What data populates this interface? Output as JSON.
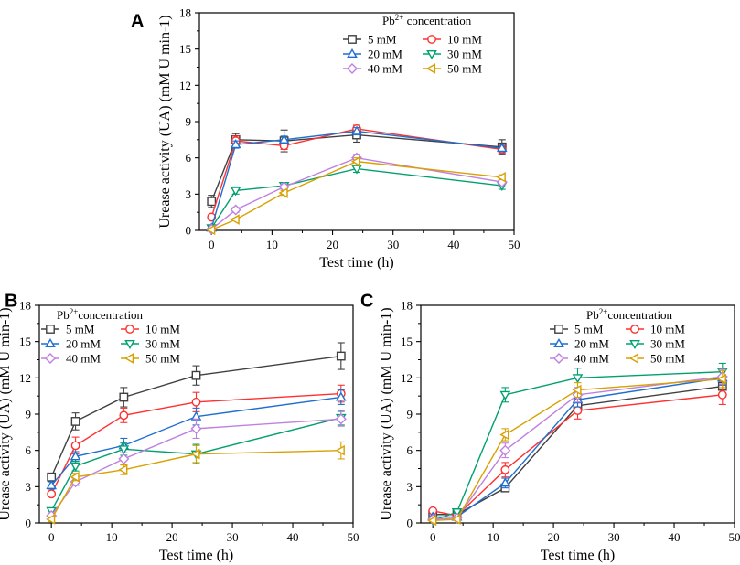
{
  "chart_data": [
    {
      "panel": "A",
      "type": "line",
      "xlabel": "Test time (h)",
      "ylabel": "Urease activity (UA) (mM U min-1)",
      "xlim": [
        -2,
        50
      ],
      "ylim": [
        0,
        18
      ],
      "xticks": [
        0,
        10,
        20,
        30,
        40,
        50
      ],
      "yticks": [
        0,
        3,
        6,
        9,
        12,
        15,
        18
      ],
      "legend_title": "Pb2+ concentration",
      "legend_title_base": "Pb",
      "legend_title_sup": "2+",
      "legend_title_rest": " concentration",
      "x": [
        0,
        4,
        12,
        24,
        48
      ],
      "series": [
        {
          "name": "5 mM",
          "color": "#404040",
          "marker": "square",
          "values": [
            2.4,
            7.5,
            7.4,
            7.9,
            6.9
          ],
          "errors": [
            0.5,
            0.5,
            0.9,
            0.6,
            0.6
          ]
        },
        {
          "name": "10 mM",
          "color": "#ff3030",
          "marker": "circle",
          "values": [
            1.1,
            7.4,
            7.0,
            8.4,
            6.7
          ],
          "errors": [
            0.2,
            0.4,
            0.3,
            0.3,
            0.3
          ]
        },
        {
          "name": "20 mM",
          "color": "#1f6fd0",
          "marker": "triangle-up",
          "values": [
            0.2,
            7.1,
            7.5,
            8.2,
            6.8
          ],
          "errors": [
            0.1,
            0.3,
            0.3,
            0.3,
            0.3
          ]
        },
        {
          "name": "30 mM",
          "color": "#00a070",
          "marker": "triangle-down",
          "values": [
            0.2,
            3.3,
            3.7,
            5.1,
            3.7
          ],
          "errors": [
            0.1,
            0.3,
            0.2,
            0.3,
            0.3
          ]
        },
        {
          "name": "40 mM",
          "color": "#c080e0",
          "marker": "diamond",
          "values": [
            0.1,
            1.7,
            3.6,
            6.0,
            4.0
          ],
          "errors": [
            0.1,
            0.2,
            0.2,
            0.3,
            0.2
          ]
        },
        {
          "name": "50 mM",
          "color": "#d8a000",
          "marker": "triangle-left",
          "values": [
            0.05,
            0.9,
            3.1,
            5.7,
            4.4
          ],
          "errors": [
            0.05,
            0.1,
            0.2,
            0.3,
            0.2
          ]
        }
      ]
    },
    {
      "panel": "B",
      "type": "line",
      "xlabel": "Test time (h)",
      "ylabel": "Urease activity (UA) (mM U min-1)",
      "xlim": [
        -2,
        50
      ],
      "ylim": [
        0,
        18
      ],
      "xticks": [
        0,
        10,
        20,
        30,
        40,
        50
      ],
      "yticks": [
        0,
        3,
        6,
        9,
        12,
        15,
        18
      ],
      "legend_title": "Pb2+concentration",
      "legend_title_base": "Pb",
      "legend_title_sup": "2+",
      "legend_title_rest": "concentration",
      "x": [
        0,
        4,
        12,
        24,
        48
      ],
      "series": [
        {
          "name": "5 mM",
          "color": "#404040",
          "marker": "square",
          "values": [
            3.8,
            8.4,
            10.4,
            12.2,
            13.8
          ],
          "errors": [
            0.3,
            0.7,
            0.8,
            0.8,
            1.1
          ]
        },
        {
          "name": "10 mM",
          "color": "#ff3030",
          "marker": "circle",
          "values": [
            2.4,
            6.4,
            8.9,
            10.0,
            10.7
          ],
          "errors": [
            0.2,
            0.7,
            0.6,
            0.8,
            0.7
          ]
        },
        {
          "name": "20 mM",
          "color": "#1f6fd0",
          "marker": "triangle-up",
          "values": [
            3.1,
            5.5,
            6.4,
            8.8,
            10.4
          ],
          "errors": [
            0.3,
            0.4,
            0.6,
            0.7,
            0.6
          ]
        },
        {
          "name": "30 mM",
          "color": "#00a070",
          "marker": "triangle-down",
          "values": [
            1.0,
            4.7,
            6.1,
            5.7,
            8.7
          ],
          "errors": [
            0.2,
            0.4,
            0.5,
            0.8,
            0.6
          ]
        },
        {
          "name": "40 mM",
          "color": "#c080e0",
          "marker": "diamond",
          "values": [
            0.6,
            3.4,
            5.3,
            7.8,
            8.6
          ],
          "errors": [
            0.2,
            0.3,
            0.5,
            0.8,
            0.6
          ]
        },
        {
          "name": "50 mM",
          "color": "#d8a000",
          "marker": "triangle-left",
          "values": [
            0.3,
            3.8,
            4.4,
            5.7,
            6.0
          ],
          "errors": [
            0.2,
            0.3,
            0.4,
            0.7,
            0.7
          ]
        }
      ]
    },
    {
      "panel": "C",
      "type": "line",
      "xlabel": "Test time (h)",
      "ylabel": "Urease activity (UA) (mM U min-1)",
      "xlim": [
        -2,
        50
      ],
      "ylim": [
        0,
        18
      ],
      "xticks": [
        0,
        10,
        20,
        30,
        40,
        50
      ],
      "yticks": [
        0,
        3,
        6,
        9,
        12,
        15,
        18
      ],
      "legend_title": "Pb2+concentration",
      "legend_title_base": "Pb",
      "legend_title_sup": "2+",
      "legend_title_rest": "concentration",
      "x": [
        0,
        4,
        12,
        24,
        48
      ],
      "series": [
        {
          "name": "5 mM",
          "color": "#404040",
          "marker": "square",
          "values": [
            0.7,
            0.7,
            2.9,
            9.7,
            11.3
          ],
          "errors": [
            0.1,
            0.1,
            0.3,
            0.6,
            0.6
          ]
        },
        {
          "name": "10 mM",
          "color": "#ff3030",
          "marker": "circle",
          "values": [
            1.0,
            0.6,
            4.4,
            9.3,
            10.6
          ],
          "errors": [
            0.1,
            0.1,
            0.6,
            0.7,
            0.8
          ]
        },
        {
          "name": "20 mM",
          "color": "#1f6fd0",
          "marker": "triangle-up",
          "values": [
            0.5,
            0.5,
            3.3,
            10.2,
            12.0
          ],
          "errors": [
            0.1,
            0.1,
            0.4,
            0.6,
            0.6
          ]
        },
        {
          "name": "30 mM",
          "color": "#00a070",
          "marker": "triangle-down",
          "values": [
            0.2,
            0.9,
            10.6,
            12.0,
            12.5
          ],
          "errors": [
            0.1,
            0.1,
            0.6,
            0.8,
            0.7
          ]
        },
        {
          "name": "40 mM",
          "color": "#c080e0",
          "marker": "diamond",
          "values": [
            0.3,
            0.4,
            6.0,
            10.6,
            12.1
          ],
          "errors": [
            0.1,
            0.1,
            0.6,
            0.6,
            0.6
          ]
        },
        {
          "name": "50 mM",
          "color": "#d8a000",
          "marker": "triangle-left",
          "values": [
            0.2,
            0.3,
            7.3,
            11.0,
            11.9
          ],
          "errors": [
            0.1,
            0.1,
            0.5,
            0.6,
            0.7
          ]
        }
      ]
    }
  ]
}
